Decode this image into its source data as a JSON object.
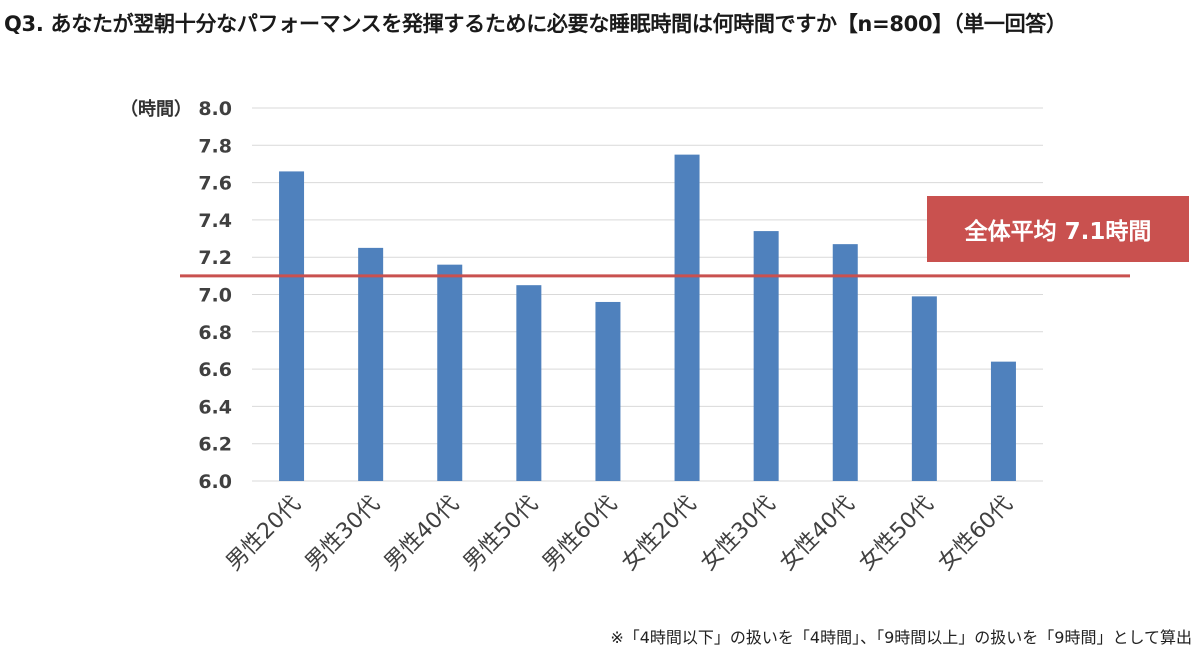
{
  "title": "Q3. あなたが翌朝十分なパフォーマンスを発揮するために必要な睡眠時間は何時間ですか【n=800】（単一回答）",
  "footnote": "※「4時間以下」の扱いを「4時間」、「9時間以上」の扱いを「9時間」として算出",
  "average_label": "全体平均 7.1時間",
  "colors": {
    "bar": "#4f81bd",
    "average_line": "#c9514f",
    "average_box": "#c9514f",
    "grid": "#d9d9d9"
  },
  "chart_data": {
    "type": "bar",
    "ylabel": "（時間）",
    "ylim": [
      6.0,
      8.0
    ],
    "yticks": [
      "6.0",
      "6.2",
      "6.4",
      "6.6",
      "6.8",
      "7.0",
      "7.2",
      "7.4",
      "7.6",
      "7.8",
      "8.0"
    ],
    "categories": [
      "男性20代",
      "男性30代",
      "男性40代",
      "男性50代",
      "男性60代",
      "女性20代",
      "女性30代",
      "女性40代",
      "女性50代",
      "女性60代"
    ],
    "values": [
      7.66,
      7.25,
      7.16,
      7.05,
      6.96,
      7.75,
      7.34,
      7.27,
      6.99,
      6.64
    ],
    "average": 7.1,
    "grid": true
  }
}
